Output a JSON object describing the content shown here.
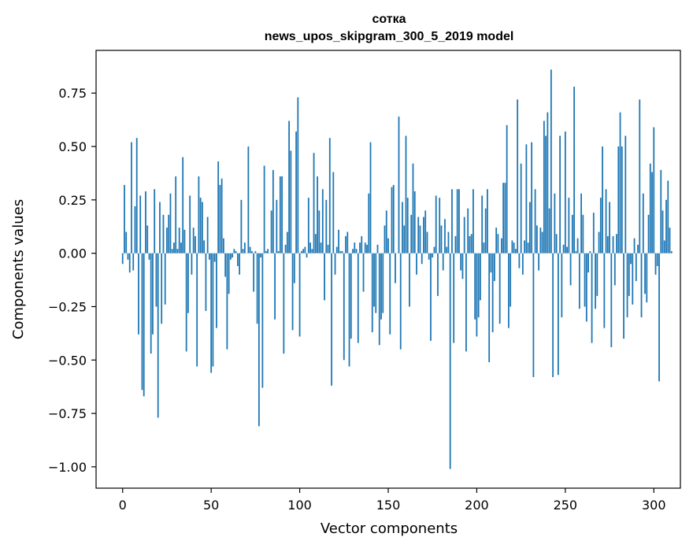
{
  "chart_data": {
    "type": "bar",
    "title": "сотка",
    "subtitle": "news_upos_skipgram_300_5_2019 model",
    "xlabel": "Vector components",
    "ylabel": "Components values",
    "xlim": [
      -15,
      315
    ],
    "ylim": [
      -1.1,
      0.95
    ],
    "x_ticks": [
      0,
      50,
      100,
      150,
      200,
      250,
      300
    ],
    "x_tick_labels": [
      "0",
      "50",
      "100",
      "150",
      "200",
      "250",
      "300"
    ],
    "y_ticks": [
      0.75,
      0.5,
      0.25,
      0.0,
      -0.25,
      -0.5,
      -0.75,
      -1.0
    ],
    "y_tick_labels": [
      "0.75",
      "0.50",
      "0.25",
      "0.00",
      "−0.25",
      "−0.50",
      "−0.75",
      "−1.00"
    ],
    "bar_color": "#1f77b4",
    "grid": false,
    "values": [
      -0.05,
      0.32,
      0.1,
      -0.03,
      -0.09,
      0.52,
      -0.08,
      0.22,
      0.54,
      -0.38,
      0.27,
      -0.64,
      -0.67,
      0.29,
      0.13,
      -0.03,
      -0.47,
      -0.38,
      0.3,
      -0.25,
      -0.77,
      0.24,
      -0.33,
      0.18,
      -0.24,
      0.12,
      0.18,
      0.28,
      0.02,
      0.05,
      0.36,
      0.02,
      0.12,
      0.05,
      0.45,
      0.11,
      -0.46,
      -0.28,
      0.27,
      -0.1,
      0.12,
      0.08,
      -0.53,
      0.36,
      0.26,
      0.24,
      0.06,
      -0.27,
      0.17,
      -0.03,
      -0.56,
      -0.53,
      -0.04,
      -0.35,
      0.43,
      0.32,
      0.35,
      0.07,
      -0.11,
      -0.45,
      -0.19,
      -0.03,
      -0.02,
      0.02,
      0.01,
      -0.06,
      -0.1,
      0.25,
      0.02,
      0.05,
      0.0,
      0.5,
      0.03,
      0.01,
      -0.18,
      0.01,
      -0.33,
      -0.81,
      -0.02,
      -0.63,
      0.41,
      0.01,
      0.02,
      0.0,
      0.2,
      0.39,
      -0.31,
      0.25,
      0.01,
      0.36,
      0.36,
      -0.47,
      0.04,
      0.1,
      0.62,
      0.48,
      -0.36,
      -0.14,
      0.57,
      0.73,
      -0.39,
      0.01,
      0.02,
      0.03,
      -0.02,
      0.26,
      0.05,
      0.02,
      0.47,
      0.09,
      0.36,
      0.2,
      0.05,
      0.3,
      -0.22,
      0.25,
      0.04,
      0.54,
      -0.62,
      0.38,
      -0.1,
      0.03,
      0.11,
      0.01,
      0.01,
      -0.5,
      0.08,
      0.1,
      -0.53,
      -0.4,
      0.02,
      0.05,
      0.02,
      -0.42,
      0.05,
      0.08,
      -0.18,
      0.05,
      0.04,
      0.28,
      0.52,
      -0.37,
      -0.25,
      -0.28,
      0.04,
      -0.43,
      -0.31,
      -0.28,
      0.13,
      0.2,
      0.07,
      -0.38,
      0.31,
      0.32,
      -0.14,
      0.0,
      0.64,
      -0.45,
      0.24,
      0.13,
      0.55,
      0.26,
      -0.25,
      0.18,
      0.42,
      0.29,
      -0.1,
      0.17,
      0.13,
      -0.05,
      0.17,
      0.2,
      0.1,
      -0.03,
      -0.41,
      -0.02,
      0.03,
      0.27,
      -0.2,
      0.26,
      0.13,
      -0.08,
      0.16,
      0.03,
      0.1,
      -1.01,
      0.3,
      -0.42,
      0.08,
      0.3,
      0.3,
      -0.08,
      -0.12,
      0.17,
      -0.46,
      0.21,
      0.08,
      0.09,
      0.3,
      -0.31,
      -0.39,
      -0.3,
      -0.22,
      0.27,
      0.05,
      0.21,
      0.3,
      -0.51,
      -0.09,
      -0.37,
      -0.13,
      0.12,
      0.09,
      -0.33,
      0.07,
      0.33,
      0.33,
      0.6,
      -0.35,
      -0.25,
      0.06,
      0.05,
      0.02,
      0.72,
      -0.07,
      0.42,
      -0.1,
      0.06,
      0.51,
      0.05,
      0.24,
      0.52,
      -0.58,
      0.3,
      0.13,
      -0.08,
      0.12,
      0.1,
      0.62,
      0.55,
      0.66,
      0.21,
      0.86,
      -0.58,
      0.28,
      0.09,
      -0.57,
      0.55,
      -0.3,
      0.04,
      0.57,
      0.03,
      0.26,
      -0.15,
      0.18,
      0.78,
      0.01,
      0.07,
      -0.26,
      0.28,
      0.18,
      -0.25,
      -0.32,
      -0.09,
      0.01,
      -0.42,
      0.19,
      -0.26,
      -0.2,
      0.1,
      0.26,
      0.5,
      -0.35,
      0.3,
      0.08,
      0.24,
      -0.44,
      0.08,
      -0.15,
      0.09,
      0.5,
      0.66,
      0.5,
      -0.4,
      0.55,
      -0.3,
      -0.2,
      -0.05,
      -0.24,
      0.07,
      -0.13,
      0.04,
      0.72,
      -0.3,
      0.28,
      -0.19,
      -0.23,
      0.18,
      0.42,
      0.38,
      0.59,
      -0.1,
      -0.06,
      -0.6,
      0.39,
      0.2,
      0.06,
      0.25,
      0.34,
      0.12,
      0.01
    ]
  }
}
